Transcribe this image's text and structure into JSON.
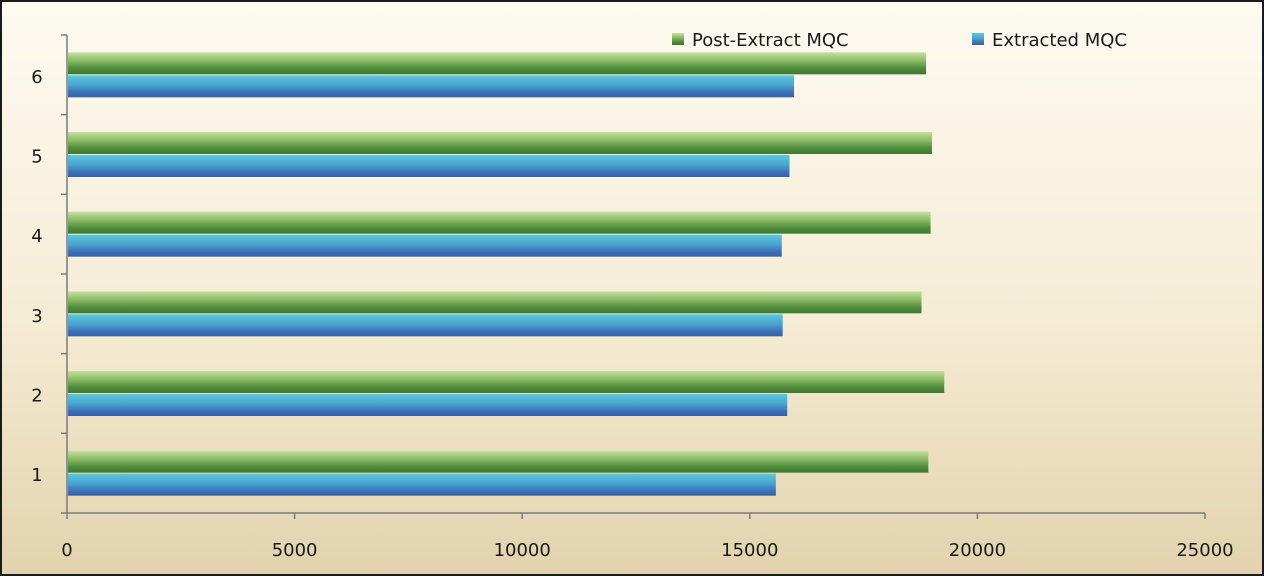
{
  "chart_data": {
    "type": "bar",
    "orientation": "horizontal",
    "categories": [
      "1",
      "2",
      "3",
      "4",
      "5",
      "6"
    ],
    "series": [
      {
        "name": "Post-Extract MQC",
        "values": [
          18900,
          19250,
          18750,
          18950,
          18980,
          18850
        ]
      },
      {
        "name": "Extracted MQC",
        "values": [
          15550,
          15800,
          15700,
          15680,
          15850,
          15950
        ]
      }
    ],
    "xlim": [
      0,
      25000
    ],
    "xticks": [
      0,
      5000,
      10000,
      15000,
      20000,
      25000
    ],
    "grid": false,
    "legend_position": "top-right",
    "colors": {
      "post_extract": "#4d8a3a",
      "post_extract_light": "#c6dfa6",
      "extracted": "#3a6fb8",
      "extracted_light": "#5ec6d8",
      "background_top": "#fdfaf1",
      "background_bottom": "#e2d3ad",
      "axis": "#7a7a7a"
    }
  }
}
